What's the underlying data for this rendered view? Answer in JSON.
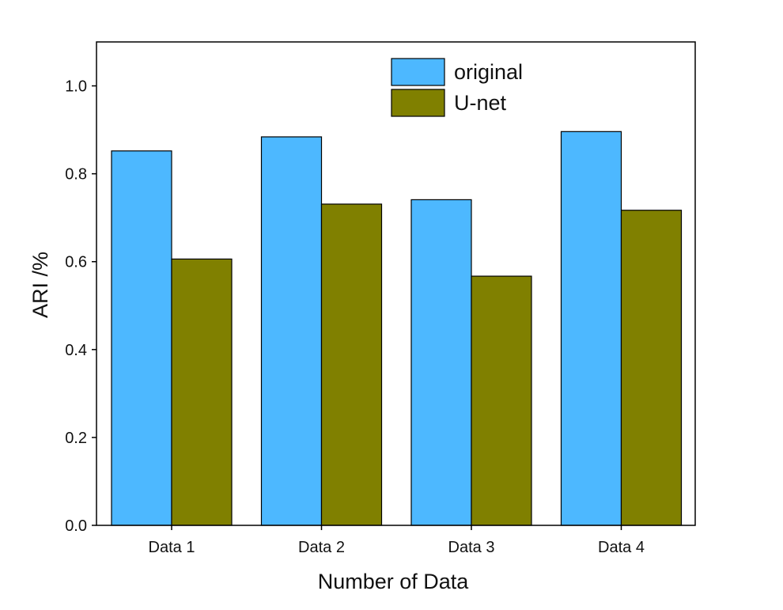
{
  "chart_data": {
    "type": "bar",
    "title": "",
    "xlabel": "Number of Data",
    "ylabel": "ARI /%",
    "ylim": [
      0.0,
      1.1
    ],
    "yticks": [
      "0.0",
      "0.2",
      "0.4",
      "0.6",
      "0.8",
      "1.0"
    ],
    "categories": [
      "Data 1",
      "Data 2",
      "Data 3",
      "Data 4"
    ],
    "series": [
      {
        "name": "original",
        "color": "#4db8ff",
        "values": [
          0.852,
          0.884,
          0.741,
          0.896
        ]
      },
      {
        "name": "U-net",
        "color": "#808000",
        "values": [
          0.606,
          0.731,
          0.567,
          0.717
        ]
      }
    ],
    "legend_position": "top-right",
    "grid": false
  }
}
